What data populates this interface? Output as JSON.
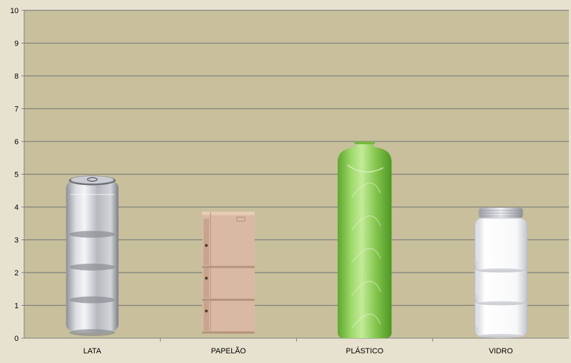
{
  "chart_data": {
    "type": "bar",
    "subtype": "pictograph",
    "title": "",
    "xlabel": "",
    "ylabel": "",
    "categories": [
      "LATA",
      "PAPELÃO",
      "PLÁSTICO",
      "VIDRO"
    ],
    "values": [
      4,
      3,
      5,
      3
    ],
    "ylim": [
      0,
      10
    ],
    "yticks": [
      "0",
      "1",
      "2",
      "3",
      "4",
      "5",
      "6",
      "7",
      "8",
      "9",
      "10"
    ],
    "grid": true,
    "legend": "none",
    "icons": [
      "soda-can-icon",
      "cardboard-box-icon",
      "plastic-bottle-icon",
      "glass-jar-icon"
    ]
  },
  "colors": {
    "outer_background": "#e6e2cf",
    "plot_background": "#c8c09c",
    "gridline": "#7f7f7f",
    "axis": "#808080",
    "can": "#c2c6cc",
    "box": "#d9b9a3",
    "bottle": "#8fcc55",
    "jar": "#f2f4f7"
  }
}
